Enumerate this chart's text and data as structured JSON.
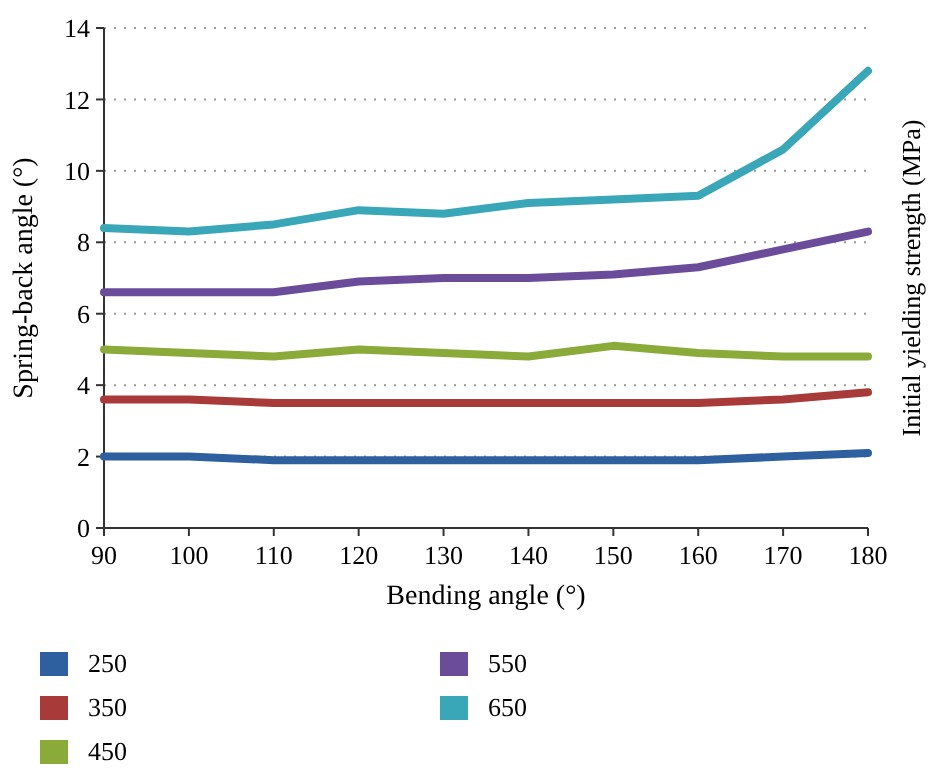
{
  "chart_data": {
    "type": "line",
    "xlabel": "Bending angle (°)",
    "ylabel": "Spring-back angle (°)",
    "annotations": [
      "Initial yielding strength (MPa)"
    ],
    "x": [
      90,
      100,
      110,
      120,
      130,
      140,
      150,
      160,
      170,
      180
    ],
    "xlim": [
      90,
      180
    ],
    "xticks": [
      90,
      100,
      110,
      120,
      130,
      140,
      150,
      160,
      170,
      180
    ],
    "ylim": [
      0,
      14
    ],
    "yticks": [
      0,
      2,
      4,
      6,
      8,
      10,
      12,
      14
    ],
    "grid": "y",
    "legend": "bottom",
    "marker": "none",
    "line_style": "solid",
    "series": [
      {
        "name": "250",
        "color": "#2e5f9e",
        "values": [
          2.0,
          2.0,
          1.9,
          1.9,
          1.9,
          1.9,
          1.9,
          1.9,
          2.0,
          2.1
        ]
      },
      {
        "name": "350",
        "color": "#a93a3a",
        "values": [
          3.6,
          3.6,
          3.5,
          3.5,
          3.5,
          3.5,
          3.5,
          3.5,
          3.6,
          3.8
        ]
      },
      {
        "name": "450",
        "color": "#8aab3a",
        "values": [
          5.0,
          4.9,
          4.8,
          5.0,
          4.9,
          4.8,
          5.1,
          4.9,
          4.8,
          4.8
        ]
      },
      {
        "name": "550",
        "color": "#6b4c9a",
        "values": [
          6.6,
          6.6,
          6.6,
          6.9,
          7.0,
          7.0,
          7.1,
          7.3,
          7.8,
          8.3
        ]
      },
      {
        "name": "650",
        "color": "#3aa7b8",
        "values": [
          8.4,
          8.3,
          8.5,
          8.9,
          8.8,
          9.1,
          9.2,
          9.3,
          10.6,
          12.8
        ]
      }
    ]
  }
}
